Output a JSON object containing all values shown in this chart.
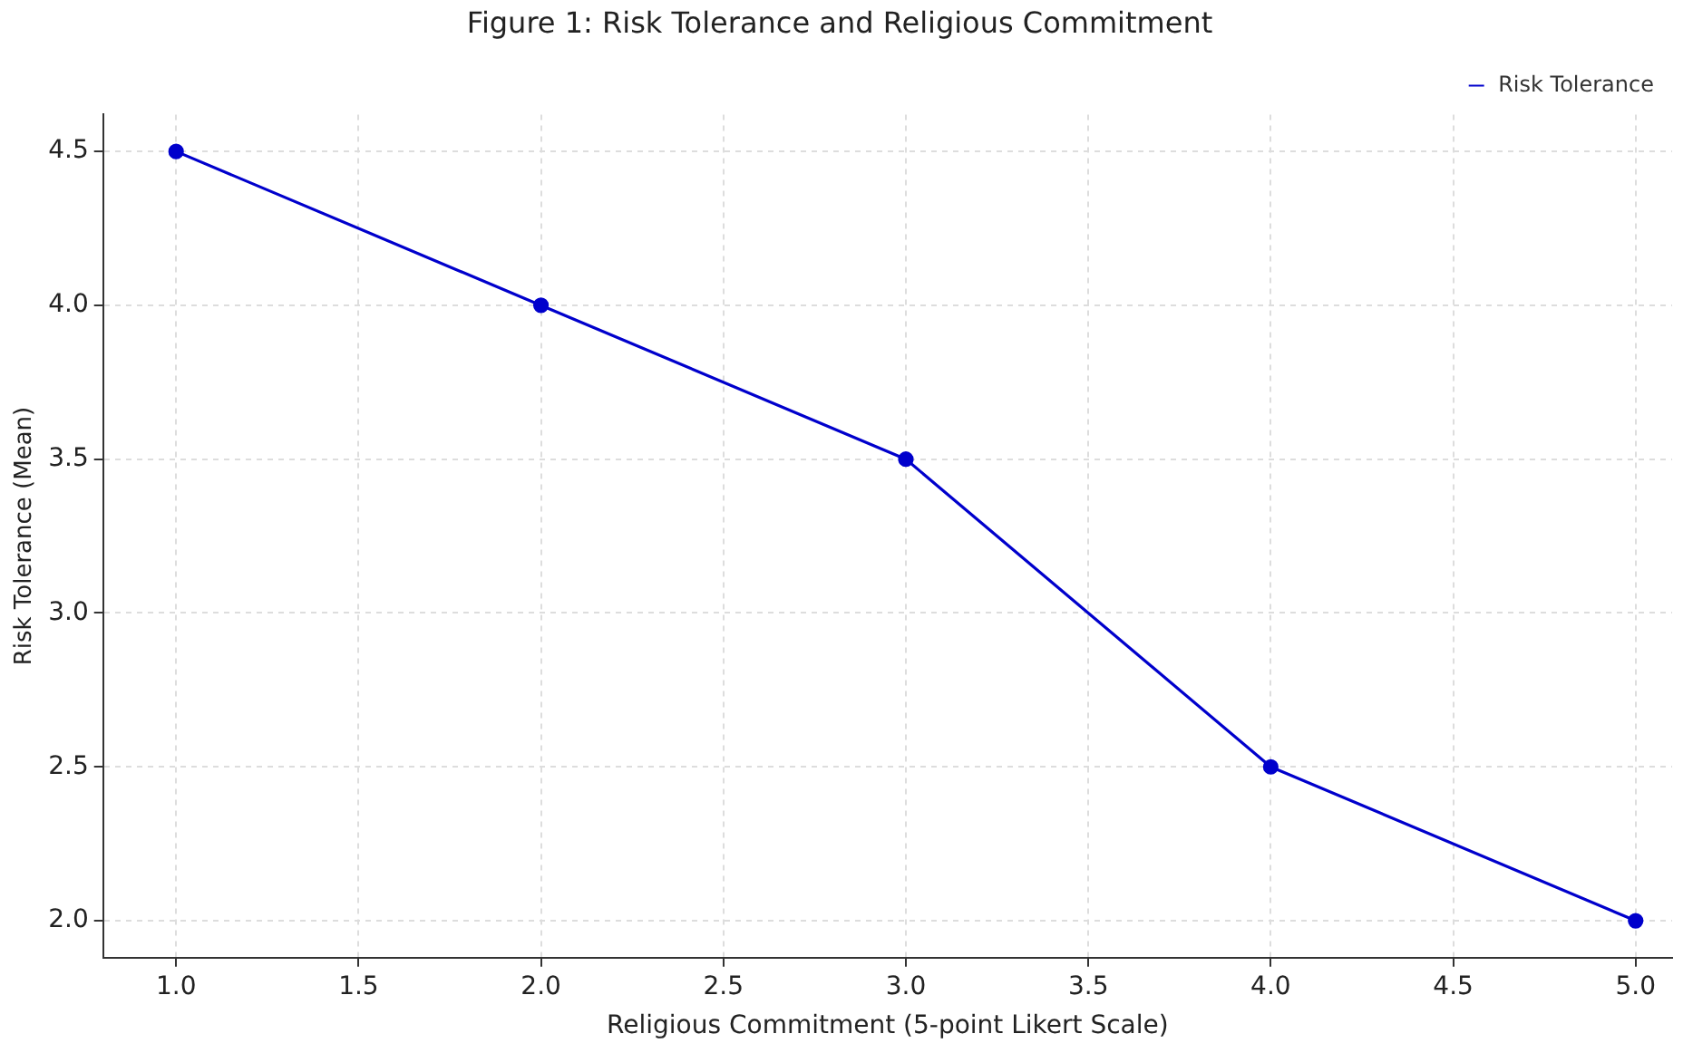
{
  "chart_data": {
    "type": "line",
    "title": "Figure 1: Risk Tolerance and Religious Commitment",
    "xlabel": "Religious Commitment (5-point Likert Scale)",
    "ylabel": "Risk Tolerance (Mean)",
    "x": [
      1,
      2,
      3,
      4,
      5
    ],
    "series": [
      {
        "name": "Risk Tolerance",
        "color": "#0000cc",
        "values": [
          4.5,
          4.0,
          3.5,
          2.5,
          2.0
        ]
      }
    ],
    "xlim": [
      0.8,
      5.1
    ],
    "xticks": [
      {
        "value": 1,
        "label": "1.0"
      },
      {
        "value": 1.5,
        "label": "1.5"
      },
      {
        "value": 2,
        "label": "2.0"
      },
      {
        "value": 2.5,
        "label": "2.5"
      },
      {
        "value": 3,
        "label": "3.0"
      },
      {
        "value": 3.5,
        "label": "3.5"
      },
      {
        "value": 4,
        "label": "4.0"
      },
      {
        "value": 4.5,
        "label": "4.5"
      },
      {
        "value": 5,
        "label": "5.0"
      }
    ],
    "ylim": [
      1.88,
      4.62
    ],
    "yticks": [
      {
        "value": 2,
        "label": "2.0"
      },
      {
        "value": 2.5,
        "label": "2.5"
      },
      {
        "value": 3,
        "label": "3.0"
      },
      {
        "value": 3.5,
        "label": "3.5"
      },
      {
        "value": 4,
        "label": "4.0"
      },
      {
        "value": 4.5,
        "label": "4.5"
      }
    ],
    "grid": true,
    "legend": "top right",
    "marker": "circle",
    "line_style": "solid"
  }
}
